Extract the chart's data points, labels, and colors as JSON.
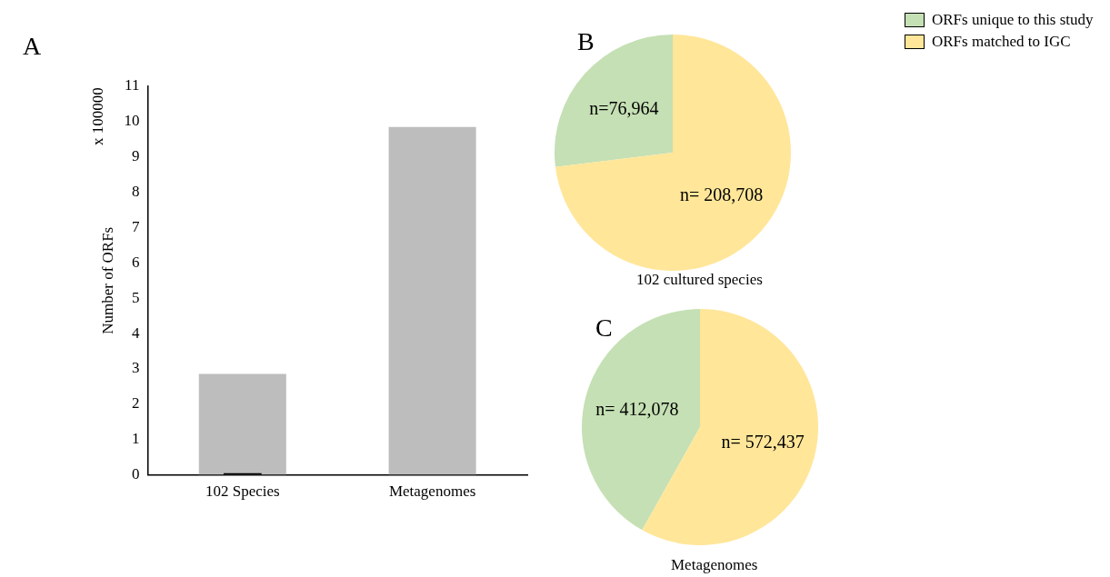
{
  "chart_data": [
    {
      "type": "bar",
      "title": "A",
      "ylabel": "Number of ORFs",
      "annotations": [
        "x 100000"
      ],
      "categories": [
        "102 Species",
        "Metagenomes"
      ],
      "series": [
        {
          "color": "#bdbdbd",
          "values": [
            2.86,
            9.85
          ]
        },
        {
          "color": "#000000",
          "values": [
            0.05,
            null
          ]
        }
      ],
      "ylim": [
        0,
        11
      ],
      "yticks": [
        0,
        1,
        2,
        3,
        4,
        5,
        6,
        7,
        8,
        9,
        10,
        11
      ],
      "grid": false,
      "legend": false
    },
    {
      "type": "pie",
      "title": "B",
      "xlabel": "102 cultured species",
      "categories": [
        "ORFs unique to this study",
        "ORFs matched to IGC"
      ],
      "values": [
        76964,
        208708
      ],
      "colors": [
        "#c5e0b4",
        "#ffe699"
      ],
      "value_labels": [
        "n=76,964",
        "n= 208,708"
      ],
      "legend": "top right"
    },
    {
      "type": "pie",
      "title": "C",
      "xlabel": "Metagenomes",
      "categories": [
        null,
        null
      ],
      "values": [
        412078,
        572437
      ],
      "colors": [
        "#c5e0b4",
        "#ffe699"
      ],
      "value_labels": [
        "n= 412,078",
        "n= 572,437"
      ],
      "legend": false
    }
  ]
}
